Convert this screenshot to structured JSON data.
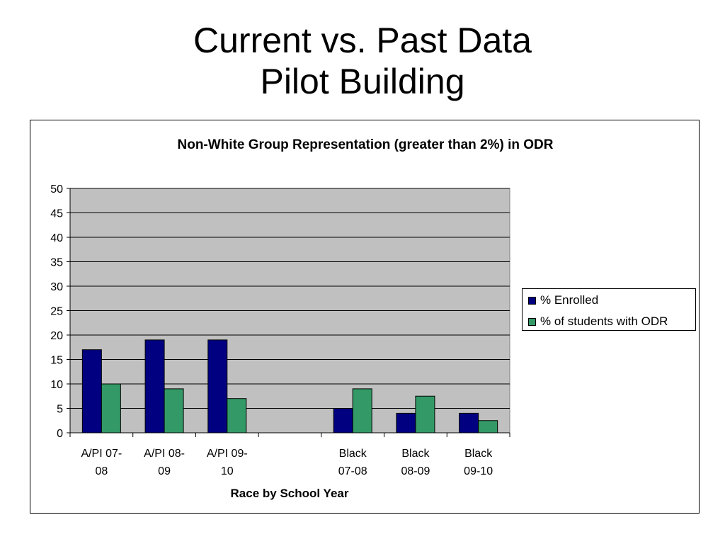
{
  "slide": {
    "title_line1": "Current vs. Past Data",
    "title_line2": "Pilot Building"
  },
  "chart_data": {
    "type": "bar",
    "title": "Non-White Group Representation (greater than 2%)  in ODR",
    "xlabel": "Race by School Year",
    "ylabel": "",
    "ylim": [
      0,
      50
    ],
    "yticks": [
      "0",
      "5",
      "10",
      "15",
      "20",
      "25",
      "30",
      "35",
      "40",
      "45",
      "50"
    ],
    "grid": true,
    "legend_position": "right",
    "categories": [
      [
        "A/PI 07-",
        "08"
      ],
      [
        "A/PI 08-",
        "09"
      ],
      [
        "A/PI 09-",
        "10"
      ],
      [
        "",
        ""
      ],
      [
        "Black",
        "07-08"
      ],
      [
        "Black",
        "08-09"
      ],
      [
        "Black",
        "09-10"
      ]
    ],
    "series": [
      {
        "name": "% Enrolled",
        "color": "#000080",
        "values": [
          17,
          19,
          19,
          null,
          5,
          4,
          4
        ]
      },
      {
        "name": "% of students with ODR",
        "color": "#339966",
        "values": [
          10,
          9,
          7,
          null,
          9,
          7.5,
          2.5
        ]
      }
    ],
    "plot_background": "#C0C0C0"
  }
}
